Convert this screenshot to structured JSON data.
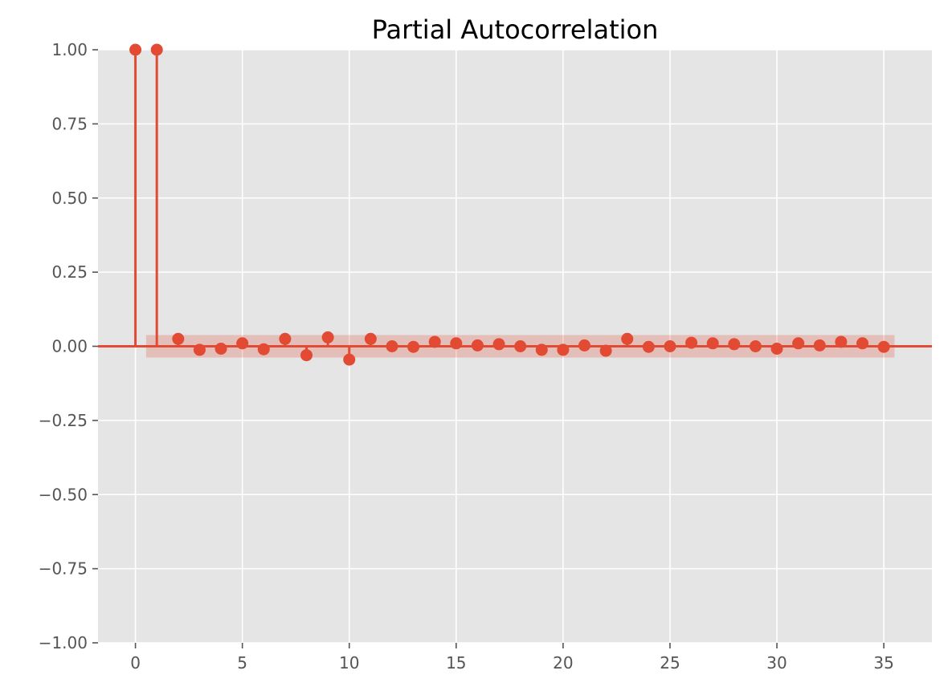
{
  "chart_data": {
    "type": "stem",
    "title": "Partial Autocorrelation",
    "xlabel": "",
    "ylabel": "",
    "xlim": [
      -1.75,
      37.25
    ],
    "ylim": [
      -1.0,
      1.0
    ],
    "x_ticks": [
      0,
      5,
      10,
      15,
      20,
      25,
      30,
      35
    ],
    "x_tick_labels": [
      "0",
      "5",
      "10",
      "15",
      "20",
      "25",
      "30",
      "35"
    ],
    "y_ticks": [
      -1.0,
      -0.75,
      -0.5,
      -0.25,
      0.0,
      0.25,
      0.5,
      0.75,
      1.0
    ],
    "y_tick_labels": [
      "−1.00",
      "−0.75",
      "−0.50",
      "−0.25",
      "0.00",
      "0.25",
      "0.50",
      "0.75",
      "1.00"
    ],
    "grid": true,
    "style": "ggplot",
    "colors": {
      "marker": "#E24A33",
      "stem": "#E24A33",
      "baseline": "#E24A33",
      "confidence_band": "#E24A33",
      "axes_background": "#E5E5E5",
      "grid": "#FFFFFF",
      "tick_label": "#555555"
    },
    "confidence_interval": {
      "x_start": 0.5,
      "x_end": 35.5,
      "lower": -0.038,
      "upper": 0.038
    },
    "lags": [
      0,
      1,
      2,
      3,
      4,
      5,
      6,
      7,
      8,
      9,
      10,
      11,
      12,
      13,
      14,
      15,
      16,
      17,
      18,
      19,
      20,
      21,
      22,
      23,
      24,
      25,
      26,
      27,
      28,
      29,
      30,
      31,
      32,
      33,
      34,
      35
    ],
    "values": [
      1.0,
      1.0,
      0.025,
      -0.012,
      -0.008,
      0.01,
      -0.01,
      0.025,
      -0.03,
      0.03,
      -0.045,
      0.025,
      0.0,
      -0.002,
      0.015,
      0.01,
      0.003,
      0.007,
      0.0,
      -0.012,
      -0.012,
      0.003,
      -0.015,
      0.025,
      -0.002,
      0.0,
      0.012,
      0.01,
      0.007,
      0.0,
      -0.008,
      0.01,
      0.003,
      0.015,
      0.01,
      -0.002
    ]
  }
}
